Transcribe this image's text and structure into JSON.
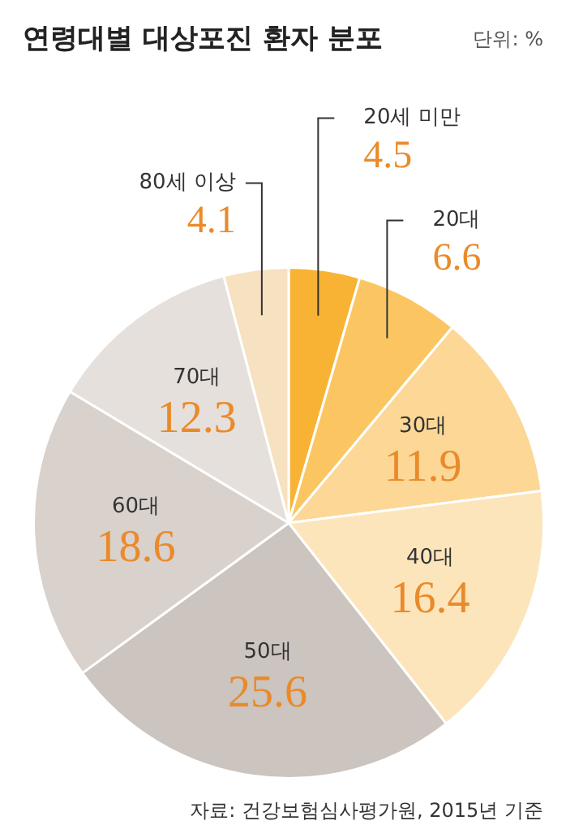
{
  "chart_data": {
    "type": "pie",
    "title": "연령대별 대상포진 환자 분포",
    "subtitle": "단위: %",
    "annotations": [
      "자료: 건강보험심사평가원, 2015년 기준"
    ],
    "categories": [
      "20세 미만",
      "20대",
      "30대",
      "40대",
      "50대",
      "60대",
      "70대",
      "80세 이상"
    ],
    "values": [
      4.5,
      6.6,
      11.9,
      16.4,
      25.6,
      18.6,
      12.3,
      4.1
    ],
    "colors": [
      "#f8b335",
      "#fbc662",
      "#fcd795",
      "#fde5bb",
      "#cbc4bf",
      "#d8d1cc",
      "#e5e0dc",
      "#f6e1c0"
    ],
    "data_labels": true
  }
}
